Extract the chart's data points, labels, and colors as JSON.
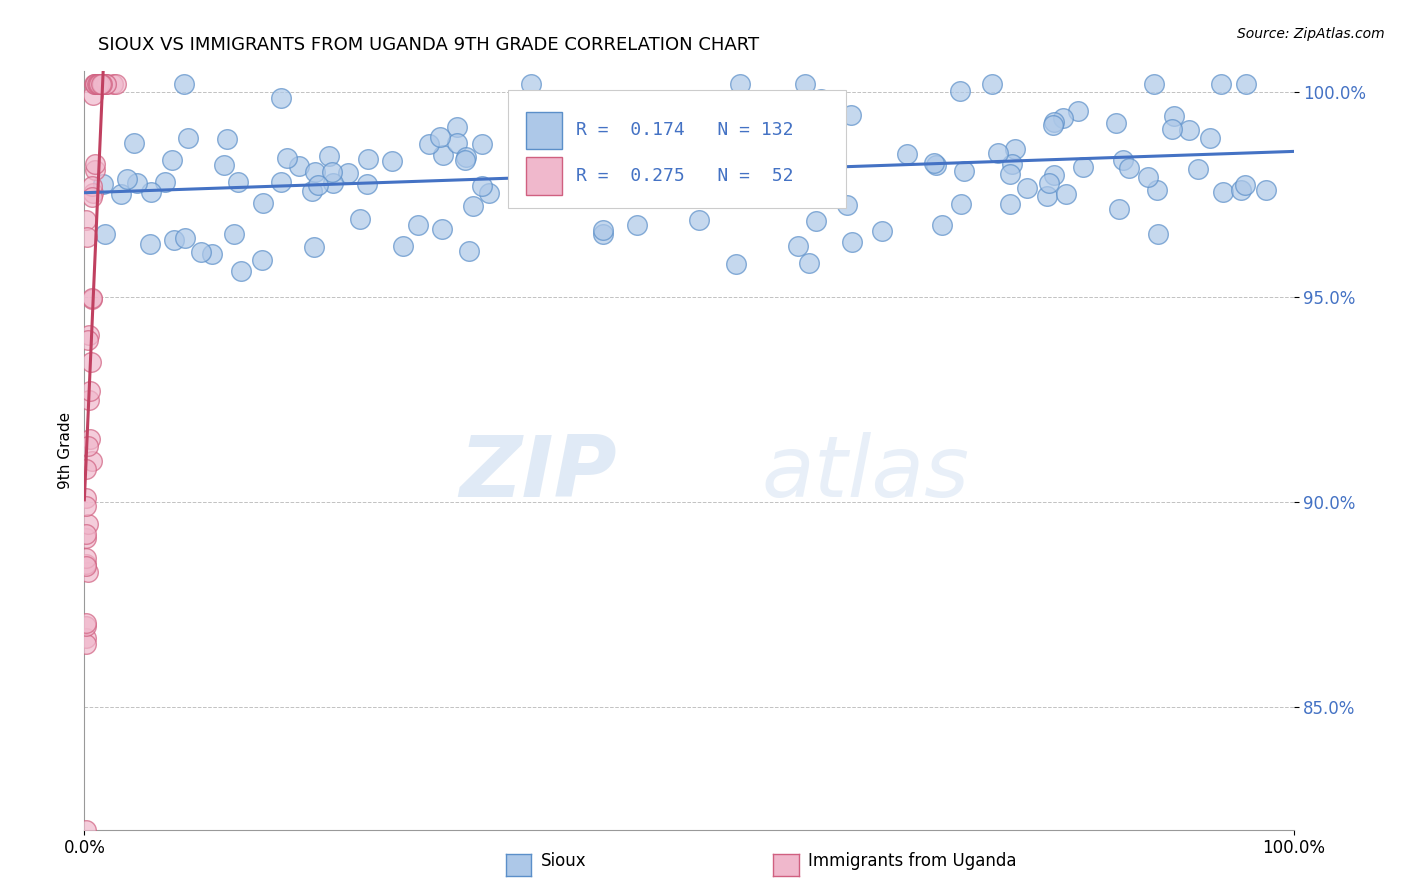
{
  "title": "SIOUX VS IMMIGRANTS FROM UGANDA 9TH GRADE CORRELATION CHART",
  "source": "Source: ZipAtlas.com",
  "ylabel": "9th Grade",
  "watermark_zip": "ZIP",
  "watermark_atlas": "atlas",
  "legend_sioux_R": "0.174",
  "legend_sioux_N": "132",
  "legend_uganda_R": "0.275",
  "legend_uganda_N": "52",
  "sioux_color": "#adc8e8",
  "sioux_edge_color": "#5b8fc9",
  "sioux_line_color": "#4472c4",
  "uganda_color": "#f0b8cc",
  "uganda_edge_color": "#d06080",
  "uganda_line_color": "#c04060",
  "background_color": "#ffffff",
  "xlim": [
    0.0,
    1.0
  ],
  "ylim": [
    0.82,
    1.005
  ],
  "yticks": [
    0.85,
    0.9,
    0.95,
    1.0
  ],
  "ytick_labels": [
    "85.0%",
    "90.0%",
    "95.0%",
    "100.0%"
  ],
  "xticks": [
    0.0,
    1.0
  ],
  "xtick_labels": [
    "0.0%",
    "100.0%"
  ],
  "legend_bottom_sioux": "Sioux",
  "legend_bottom_uganda": "Immigrants from Uganda"
}
